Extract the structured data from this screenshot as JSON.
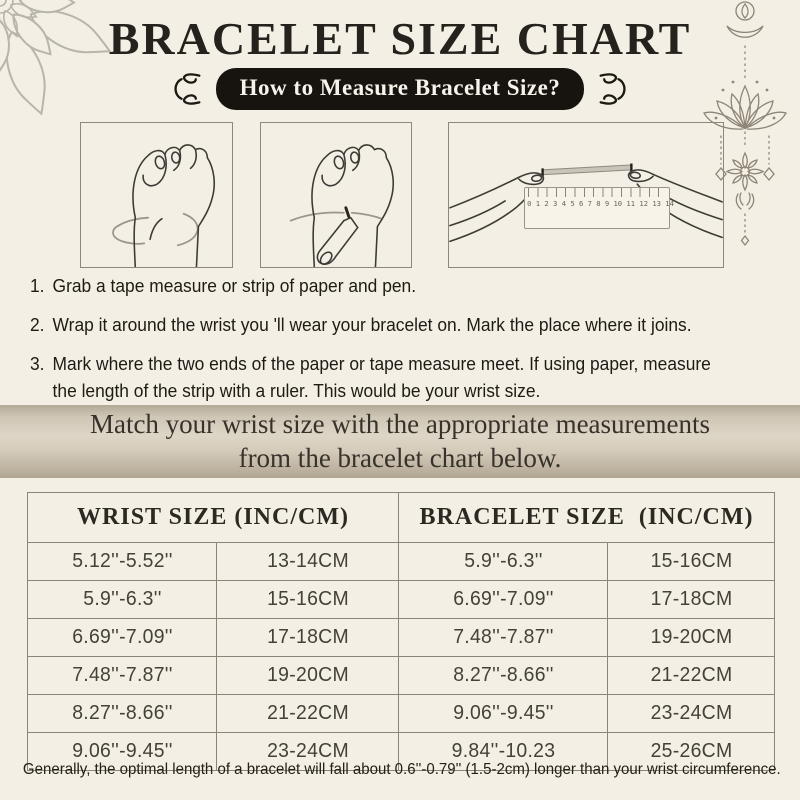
{
  "title": "BRACELET SIZE CHART",
  "badge": "How to Measure Bracelet Size?",
  "instructions": [
    {
      "num": "1.",
      "lines": [
        "Grab a tape measure or strip of paper and pen."
      ]
    },
    {
      "num": "2.",
      "lines": [
        "Wrap it around the wrist you 'll wear your bracelet on. Mark the place where it joins."
      ]
    },
    {
      "num": "3.",
      "lines": [
        "Mark where the two ends of the paper or tape measure meet. If using paper, measure",
        "the length of the strip with a ruler. This would be your wrist size."
      ]
    }
  ],
  "banner": {
    "lines": [
      "Match your wrist size with the appropriate measurements",
      "from the bracelet chart below."
    ]
  },
  "table": {
    "headers": [
      "WRIST SIZE (INC/CM)",
      "BRACELET SIZE  (INC/CM)"
    ],
    "rows": [
      [
        "5.12''-5.52''",
        "13-14CM",
        "5.9''-6.3''",
        "15-16CM"
      ],
      [
        "5.9''-6.3''",
        "15-16CM",
        "6.69''-7.09''",
        "17-18CM"
      ],
      [
        "6.69''-7.09''",
        "17-18CM",
        "7.48''-7.87''",
        "19-20CM"
      ],
      [
        "7.48''-7.87''",
        "19-20CM",
        "8.27''-8.66''",
        "21-22CM"
      ],
      [
        "8.27''-8.66''",
        "21-22CM",
        "9.06''-9.45''",
        "23-24CM"
      ],
      [
        "9.06''-9.45''",
        "23-24CM",
        "9.84''-10.23",
        "25-26CM"
      ]
    ]
  },
  "footnote": "Generally, the optimal length of a bracelet will fall about 0.6''-0.79'' (1.5-2cm) longer than your wrist circumference.",
  "illustrations": {
    "ruler_numbers": "0 1 2 3 4 5 6 7 8 9 10 11 12 13 14"
  },
  "colors": {
    "background": "#f4efe4",
    "badge_bg": "#17130e",
    "badge_text": "#f7f3ea",
    "banner_bg": "#d5ccbb",
    "table_border": "#8b8579",
    "text_dark": "#25221d",
    "tape_gray": "#9b968b",
    "decor_gray": "#8d8677"
  }
}
